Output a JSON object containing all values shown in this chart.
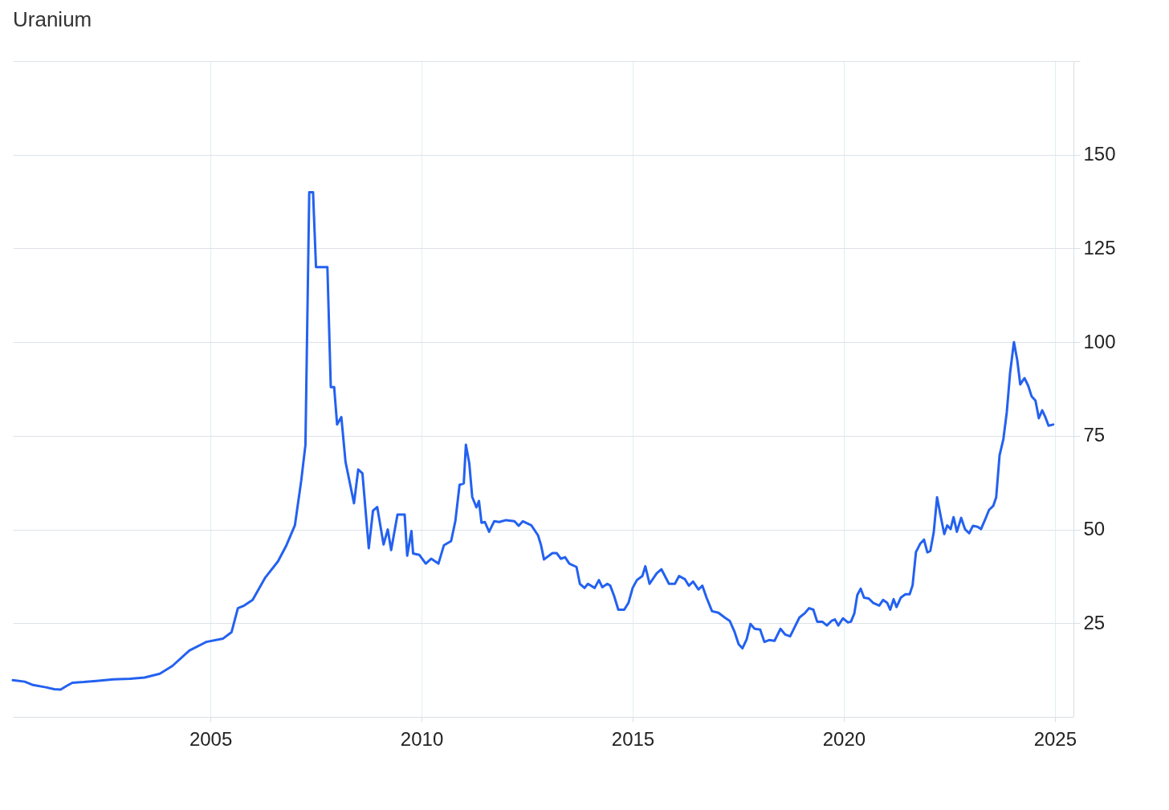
{
  "chart_data": {
    "type": "line",
    "title": "Uranium",
    "x": [
      2000.32,
      2000.6,
      2000.8,
      2001.1,
      2001.3,
      2001.45,
      2001.6,
      2001.73,
      2002.0,
      2002.3,
      2002.7,
      2003.1,
      2003.44,
      2003.8,
      2004.1,
      2004.5,
      2004.9,
      2005.3,
      2005.5,
      2005.65,
      2005.8,
      2006.0,
      2006.3,
      2006.6,
      2006.8,
      2007.0,
      2007.15,
      2007.25,
      2007.34,
      2007.43,
      2007.5,
      2007.77,
      2007.85,
      2007.93,
      2008.0,
      2008.1,
      2008.2,
      2008.4,
      2008.5,
      2008.6,
      2008.75,
      2008.85,
      2008.95,
      2009.1,
      2009.2,
      2009.28,
      2009.43,
      2009.6,
      2009.66,
      2009.76,
      2009.8,
      2009.95,
      2010.1,
      2010.23,
      2010.4,
      2010.53,
      2010.7,
      2010.8,
      2010.9,
      2011.0,
      2011.05,
      2011.13,
      2011.2,
      2011.3,
      2011.36,
      2011.42,
      2011.5,
      2011.6,
      2011.72,
      2011.84,
      2012.0,
      2012.2,
      2012.3,
      2012.4,
      2012.6,
      2012.76,
      2012.83,
      2012.9,
      2013.1,
      2013.2,
      2013.3,
      2013.4,
      2013.5,
      2013.67,
      2013.75,
      2013.86,
      2013.94,
      2014.1,
      2014.2,
      2014.28,
      2014.4,
      2014.47,
      2014.56,
      2014.66,
      2014.8,
      2014.9,
      2015.0,
      2015.1,
      2015.23,
      2015.3,
      2015.4,
      2015.57,
      2015.68,
      2015.86,
      2016.0,
      2016.1,
      2016.24,
      2016.33,
      2016.43,
      2016.56,
      2016.65,
      2016.75,
      2016.88,
      2017.03,
      2017.18,
      2017.3,
      2017.41,
      2017.51,
      2017.6,
      2017.7,
      2017.79,
      2017.89,
      2018.02,
      2018.12,
      2018.23,
      2018.36,
      2018.5,
      2018.61,
      2018.73,
      2018.84,
      2018.95,
      2019.07,
      2019.18,
      2019.28,
      2019.37,
      2019.49,
      2019.6,
      2019.71,
      2019.79,
      2019.87,
      2019.98,
      2020.1,
      2020.17,
      2020.25,
      2020.32,
      2020.4,
      2020.48,
      2020.59,
      2020.7,
      2020.84,
      2020.93,
      2021.03,
      2021.1,
      2021.18,
      2021.25,
      2021.35,
      2021.46,
      2021.56,
      2021.63,
      2021.71,
      2021.81,
      2021.9,
      2021.98,
      2022.05,
      2022.13,
      2022.21,
      2022.3,
      2022.38,
      2022.45,
      2022.53,
      2022.6,
      2022.68,
      2022.78,
      2022.87,
      2022.97,
      2023.06,
      2023.17,
      2023.25,
      2023.35,
      2023.44,
      2023.54,
      2023.61,
      2023.69,
      2023.78,
      2023.86,
      2023.94,
      2024.03,
      2024.11,
      2024.18,
      2024.28,
      2024.37,
      2024.45,
      2024.54,
      2024.62,
      2024.7,
      2024.77,
      2024.85,
      2024.96
    ],
    "series": [
      {
        "color": "#2361f0",
        "values": [
          9.8,
          9.4,
          8.5,
          7.9,
          7.4,
          7.3,
          8.3,
          9.1,
          9.3,
          9.6,
          10,
          10.2,
          10.5,
          11.5,
          13.6,
          17.7,
          20,
          20.9,
          22.6,
          29,
          29.7,
          31.2,
          37.2,
          41.5,
          45.8,
          51.1,
          63,
          72.6,
          140,
          140,
          120,
          120,
          88,
          88,
          78,
          80,
          68,
          57,
          66,
          65,
          45,
          55,
          56,
          46,
          50,
          44.5,
          54,
          54,
          43,
          49.6,
          43.6,
          43.2,
          40.9,
          42.2,
          40.9,
          45.8,
          46.9,
          52.2,
          61.9,
          62.3,
          72.6,
          67.7,
          58.7,
          55.9,
          57.6,
          51.8,
          52,
          49.4,
          52.2,
          52,
          52.5,
          52.2,
          51,
          52.2,
          51.1,
          48.4,
          45.8,
          42,
          43.7,
          43.7,
          42.2,
          42.6,
          40.9,
          40,
          35.5,
          34.4,
          35.5,
          34.4,
          36.5,
          34.6,
          35.5,
          35,
          32.3,
          28.6,
          28.6,
          30.4,
          34.4,
          36.5,
          37.6,
          40.2,
          35.5,
          38.3,
          39.4,
          35.5,
          35.5,
          37.6,
          36.7,
          35,
          36.1,
          34,
          35,
          31.8,
          28.2,
          27.8,
          26.5,
          25.6,
          22.8,
          19.4,
          18.3,
          20.7,
          24.8,
          23.5,
          23.3,
          20,
          20.5,
          20.3,
          23.5,
          22,
          21.5,
          24,
          26.5,
          27.6,
          29,
          28.6,
          25.4,
          25.4,
          24.4,
          25.6,
          26,
          24.4,
          26.3,
          25.2,
          25.4,
          27.6,
          32.5,
          34.2,
          31.8,
          31.6,
          30.4,
          29.7,
          31.2,
          30.4,
          28.6,
          31.4,
          29.3,
          31.8,
          32.7,
          32.7,
          35.1,
          44,
          46.2,
          47.3,
          43.9,
          44.3,
          49.2,
          58.6,
          53.3,
          48.8,
          51.1,
          50.1,
          53.3,
          49.4,
          53.1,
          50.1,
          49,
          51,
          50.7,
          50.1,
          52.7,
          55.2,
          56.3,
          58.6,
          69.8,
          74.1,
          81.2,
          91.9,
          100,
          95.1,
          88.7,
          90.4,
          88.3,
          85.5,
          84.4,
          79.7,
          81.8,
          80.1,
          77.7,
          78
        ]
      }
    ],
    "xlim": [
      2000.32,
      2025.44
    ],
    "xticks": [
      2005,
      2010,
      2015,
      2020,
      2025
    ],
    "ylim": [
      0,
      175
    ],
    "yticks": [
      25,
      50,
      75,
      100,
      125,
      150,
      {
        "value": 175,
        "label": null
      }
    ],
    "grid": true
  }
}
